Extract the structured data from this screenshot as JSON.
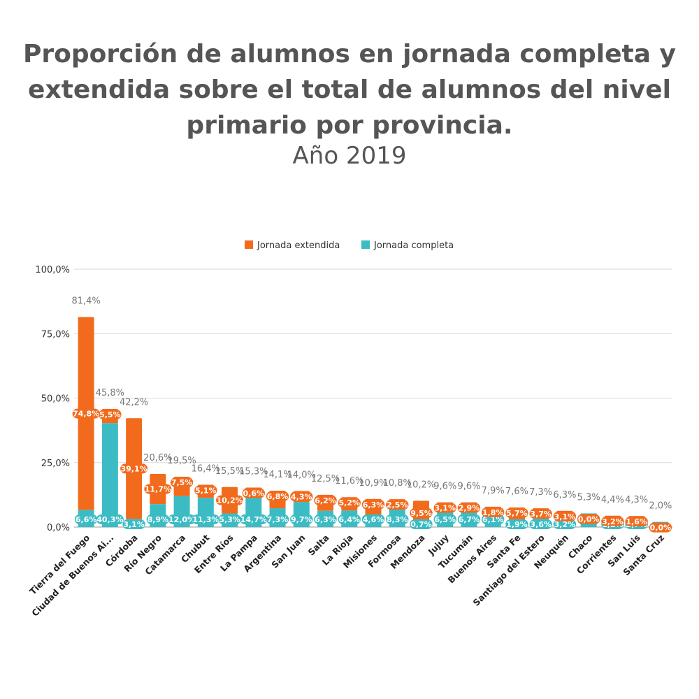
{
  "chart_data": {
    "type": "bar",
    "stacked": true,
    "title": "Proporción de alumnos en jornada completa y extendida sobre el total de alumnos del nivel primario por provincia.",
    "subtitle": "Año 2019",
    "legend_position": "top",
    "grid": true,
    "ylim": [
      0,
      100
    ],
    "y_ticks": [
      "0,0%",
      "25,0%",
      "50,0%",
      "75,0%",
      "100,0%"
    ],
    "y_tick_values": [
      0,
      25,
      50,
      75,
      100
    ],
    "categories": [
      "Tierra del Fuego",
      "Ciudad de Buenos Ai...",
      "Córdoba",
      "Río Negro",
      "Catamarca",
      "Chubut",
      "Entre Ríos",
      "La Pampa",
      "Argentina",
      "San Juan",
      "Salta",
      "La Rioja",
      "Misiones",
      "Formosa",
      "Mendoza",
      "Jujuy",
      "Tucumán",
      "Buenos Aires",
      "Santa Fe",
      "Santiago del Estero",
      "Neuquén",
      "Chaco",
      "Corrientes",
      "San Luis",
      "Santa Cruz"
    ],
    "series": [
      {
        "name": "Jornada completa",
        "color": "#3bbcc4",
        "values": [
          6.6,
          40.3,
          3.1,
          8.9,
          12.0,
          11.3,
          5.3,
          14.7,
          7.3,
          9.7,
          6.3,
          6.4,
          4.6,
          8.3,
          0.7,
          6.5,
          6.7,
          6.1,
          1.9,
          3.6,
          3.2,
          5.3,
          1.2,
          2.7,
          2.0
        ],
        "labels": [
          "6,6%",
          "40,3%",
          "3,1%",
          "8,9%",
          "12,0%",
          "11,3%",
          "5,3%",
          "14,7%",
          "7,3%",
          "9,7%",
          "6,3%",
          "6,4%",
          "4,6%",
          "8,3%",
          "0,7%",
          "6,5%",
          "6,7%",
          "6,1%",
          "1,9%",
          "3,6%",
          "3,2%",
          "5,3%",
          "1,2%",
          "2,7%",
          ""
        ]
      },
      {
        "name": "Jornada extendida",
        "color": "#f26b1d",
        "values": [
          74.8,
          5.5,
          39.1,
          11.7,
          7.5,
          5.1,
          10.2,
          0.6,
          6.8,
          4.3,
          6.2,
          5.2,
          6.3,
          2.5,
          9.5,
          3.1,
          2.9,
          1.8,
          5.7,
          3.7,
          3.1,
          0.0,
          3.2,
          1.6,
          0.0
        ],
        "labels": [
          "74,8%",
          "5,5%",
          "39,1%",
          "11,7%",
          "7,5%",
          "5,1%",
          "10,2%",
          "0,6%",
          "6,8%",
          "4,3%",
          "6,2%",
          "5,2%",
          "6,3%",
          "2,5%",
          "9,5%",
          "3,1%",
          "2,9%",
          "1,8%",
          "5,7%",
          "3,7%",
          "3,1%",
          "0,0%",
          "3,2%",
          "1,6%",
          "0,0%"
        ]
      }
    ],
    "totals": [
      "81,4%",
      "45,8%",
      "42,2%",
      "20,6%",
      "19,5%",
      "16,4%",
      "15,5%",
      "15,3%",
      "14,1%",
      "14,0%",
      "12,5%",
      "11,6%",
      "10,9%",
      "10,8%",
      "10,2%",
      "9,6%",
      "9,6%",
      "7,9%",
      "7,6%",
      "7,3%",
      "6,3%",
      "5,3%",
      "4,4%",
      "4,3%",
      "2,0%"
    ]
  }
}
